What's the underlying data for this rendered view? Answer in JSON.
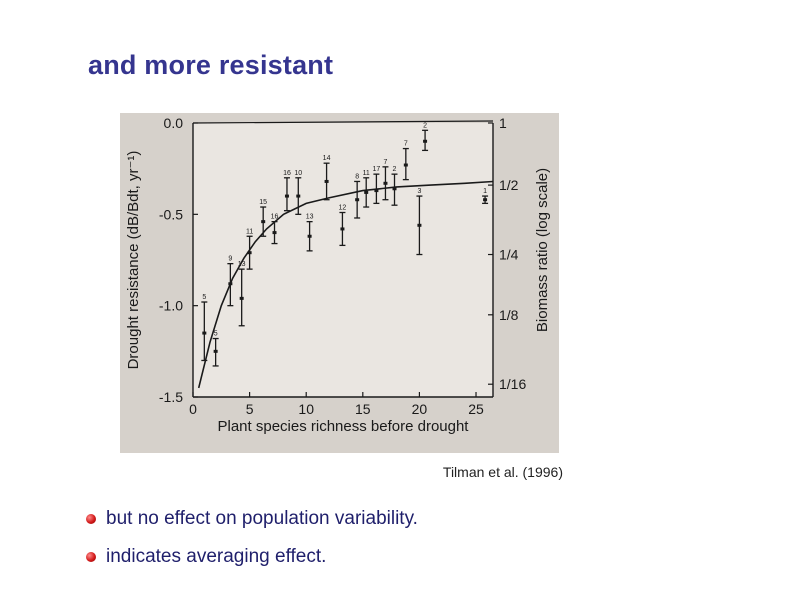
{
  "slide": {
    "title": "and more resistant",
    "citation": "Tilman et al. (1996)",
    "bullets": [
      "but no effect on population variability.",
      "indicates averaging effect."
    ],
    "colors": {
      "title": "#35358f",
      "bullet": "#d21a1a",
      "text": "#1f1f6b"
    }
  },
  "chart_data": {
    "type": "scatter",
    "title": "",
    "xlabel": "Plant species richness before drought",
    "ylabel": "Drought resistance (dB/Bdt, yr⁻¹)",
    "ylabel_right": "Biomass ratio (log scale)",
    "xlim": [
      0,
      26.5
    ],
    "ylim": [
      -1.5,
      0.0
    ],
    "x_ticks": [
      "0",
      "5",
      "10",
      "15",
      "20",
      "25"
    ],
    "y_ticks": [
      "0.0",
      "-0.5",
      "-1.0",
      "-1.5"
    ],
    "y_right_ticks": [
      "1",
      "1/2",
      "1/4",
      "1/8",
      "1/16"
    ],
    "grid": false,
    "points": [
      {
        "label": "5",
        "x": 1.0,
        "y": -1.15,
        "lo": -1.3,
        "hi": -0.98
      },
      {
        "label": "5",
        "x": 2.0,
        "y": -1.25,
        "lo": -1.33,
        "hi": -1.18
      },
      {
        "label": "9",
        "x": 3.3,
        "y": -0.88,
        "lo": -1.0,
        "hi": -0.77
      },
      {
        "label": "13",
        "x": 4.3,
        "y": -0.96,
        "lo": -1.11,
        "hi": -0.8
      },
      {
        "label": "11",
        "x": 5.0,
        "y": -0.71,
        "lo": -0.8,
        "hi": -0.62
      },
      {
        "label": "16",
        "x": 7.2,
        "y": -0.6,
        "lo": -0.66,
        "hi": -0.54
      },
      {
        "label": "15",
        "x": 6.2,
        "y": -0.54,
        "lo": -0.62,
        "hi": -0.46
      },
      {
        "label": "16",
        "x": 8.3,
        "y": -0.4,
        "lo": -0.48,
        "hi": -0.3
      },
      {
        "label": "10",
        "x": 9.3,
        "y": -0.4,
        "lo": -0.5,
        "hi": -0.3
      },
      {
        "label": "13",
        "x": 10.3,
        "y": -0.62,
        "lo": -0.7,
        "hi": -0.54
      },
      {
        "label": "14",
        "x": 11.8,
        "y": -0.32,
        "lo": -0.42,
        "hi": -0.22
      },
      {
        "label": "12",
        "x": 13.2,
        "y": -0.58,
        "lo": -0.67,
        "hi": -0.49
      },
      {
        "label": "8",
        "x": 14.5,
        "y": -0.42,
        "lo": -0.52,
        "hi": -0.32
      },
      {
        "label": "11",
        "x": 15.3,
        "y": -0.38,
        "lo": -0.46,
        "hi": -0.3
      },
      {
        "label": "17",
        "x": 16.2,
        "y": -0.37,
        "lo": -0.44,
        "hi": -0.28
      },
      {
        "label": "7",
        "x": 17.0,
        "y": -0.33,
        "lo": -0.42,
        "hi": -0.24
      },
      {
        "label": "2",
        "x": 17.8,
        "y": -0.36,
        "lo": -0.45,
        "hi": -0.28
      },
      {
        "label": "7",
        "x": 18.8,
        "y": -0.23,
        "lo": -0.31,
        "hi": -0.14
      },
      {
        "label": "3",
        "x": 20.0,
        "y": -0.56,
        "lo": -0.72,
        "hi": -0.4
      },
      {
        "label": "2",
        "x": 20.5,
        "y": -0.1,
        "lo": -0.15,
        "hi": -0.04
      },
      {
        "label": "1",
        "x": 25.8,
        "y": -0.42,
        "lo": -0.44,
        "hi": -0.4
      }
    ],
    "fit_curve": {
      "x": [
        0.5,
        1.5,
        2.5,
        3.5,
        4.5,
        5.5,
        6.5,
        8,
        10,
        12,
        15,
        18,
        21,
        24,
        26.5
      ],
      "y": [
        -1.45,
        -1.2,
        -1.0,
        -0.85,
        -0.74,
        -0.65,
        -0.58,
        -0.5,
        -0.44,
        -0.41,
        -0.37,
        -0.35,
        -0.34,
        -0.33,
        -0.32
      ]
    }
  }
}
